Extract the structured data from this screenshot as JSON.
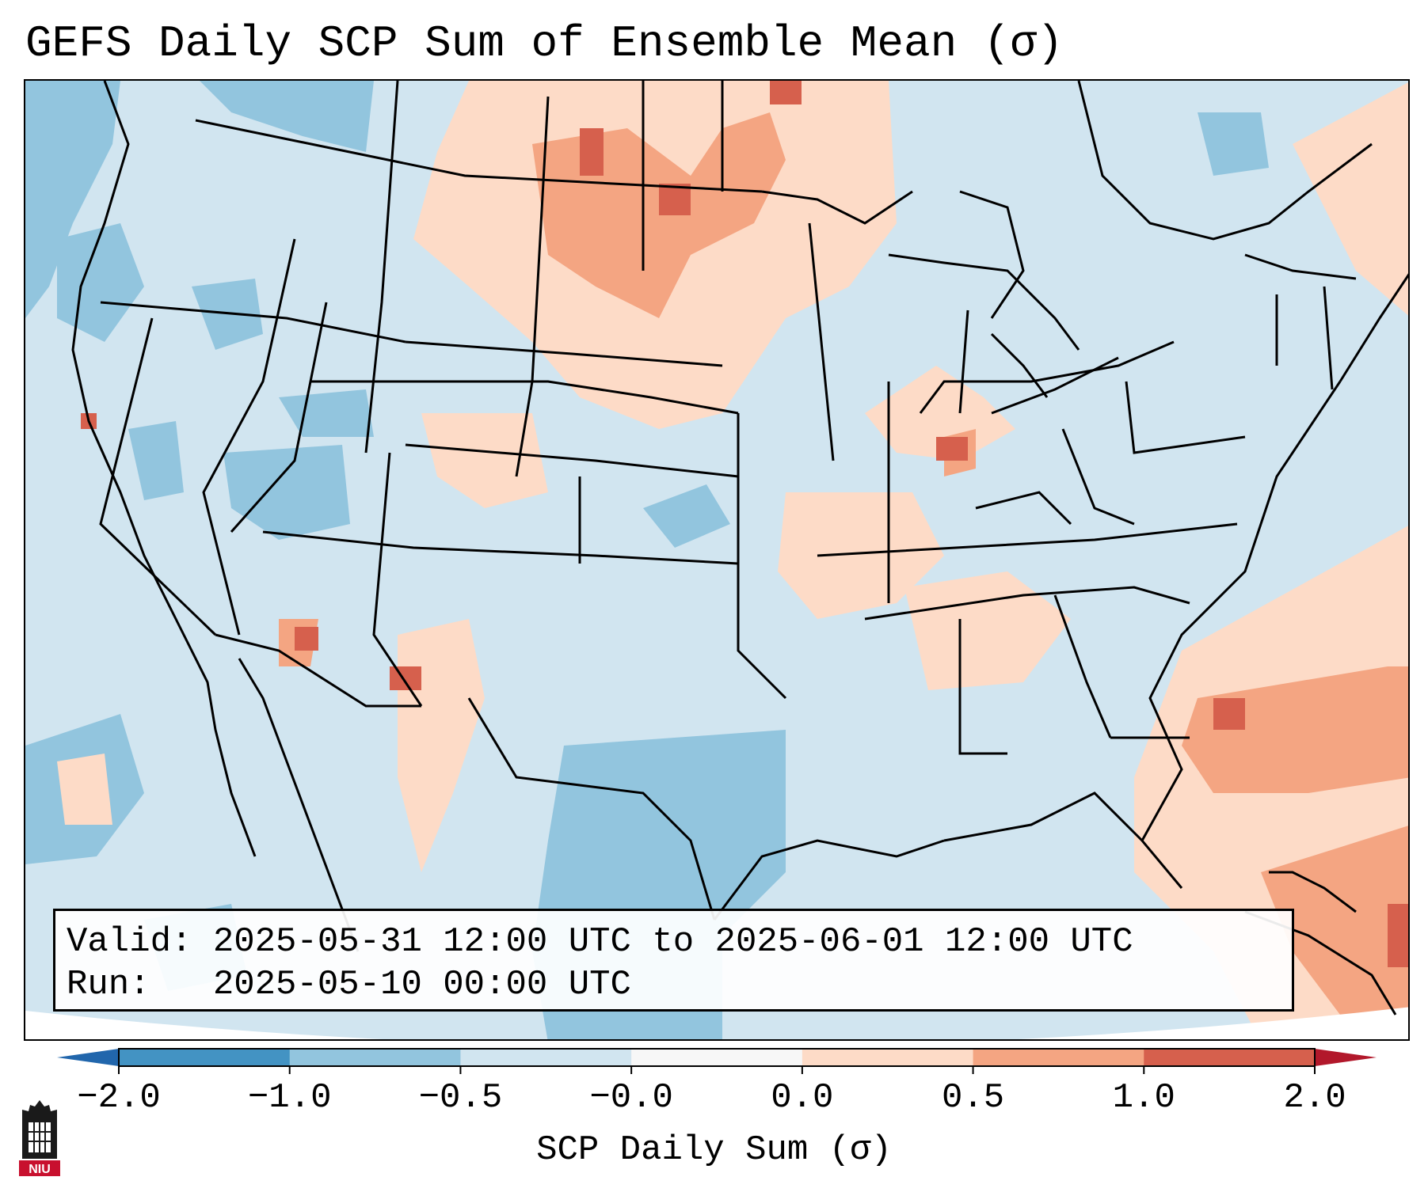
{
  "title": "GEFS Daily SCP Sum of Ensemble Mean (σ)",
  "info": {
    "valid_line": "Valid: 2025-05-31 12:00 UTC to 2025-06-01 12:00 UTC",
    "run_line": "Run:   2025-05-10 00:00 UTC"
  },
  "colorbar": {
    "label": "SCP Daily Sum (σ)",
    "ticks": [
      "−2.0",
      "−1.0",
      "−0.5",
      "−0.0",
      "0.0",
      "0.5",
      "1.0",
      "2.0"
    ],
    "bins": [
      {
        "color": "#4393c3"
      },
      {
        "color": "#92c5de"
      },
      {
        "color": "#d1e5f0"
      },
      {
        "color": "#f7f7f7"
      },
      {
        "color": "#fddbc7"
      },
      {
        "color": "#f4a582"
      },
      {
        "color": "#d6604d"
      }
    ],
    "extend_low_color": "#2166ac",
    "extend_high_color": "#b2182b"
  },
  "logo": {
    "text": "NIU",
    "color": "#c8102e"
  }
}
